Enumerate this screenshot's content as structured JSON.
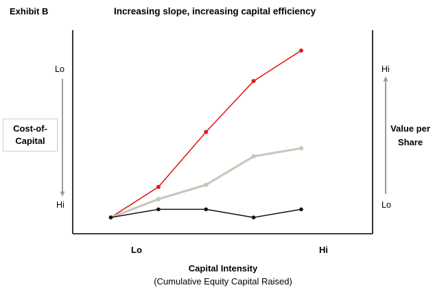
{
  "exhibit": "Exhibit B",
  "chart_data": {
    "type": "line",
    "title": "Increasing slope, increasing capital efficiency",
    "xlabel": "Capital Intensity",
    "xlabel_sub": "(Cumulative Equity Capital Raised)",
    "x_ticks": {
      "low": "Lo",
      "high": "Hi"
    },
    "left_axis": {
      "label_lines": [
        "Cost-of-",
        "Capital"
      ],
      "top_tick": "Lo",
      "bottom_tick": "Hi",
      "arrow": "down"
    },
    "right_axis": {
      "label_lines": [
        "Value per",
        "Share"
      ],
      "top_tick": "Hi",
      "bottom_tick": "Lo",
      "arrow": "up"
    },
    "x": [
      1,
      2,
      3,
      4,
      5
    ],
    "xlim": [
      0.2,
      6.5
    ],
    "ylim": [
      0,
      10
    ],
    "grid": false,
    "legend": "none",
    "series": [
      {
        "color": "#e01b1b",
        "values": [
          0.8,
          2.3,
          5.0,
          7.5,
          9.0
        ]
      },
      {
        "color": "#c8c8bb",
        "values": [
          0.8,
          1.7,
          2.4,
          3.8,
          4.2
        ]
      },
      {
        "color": "#111111",
        "values": [
          0.8,
          1.2,
          1.2,
          0.8,
          1.2
        ]
      }
    ],
    "arrow_color": "#9a9a9a"
  }
}
